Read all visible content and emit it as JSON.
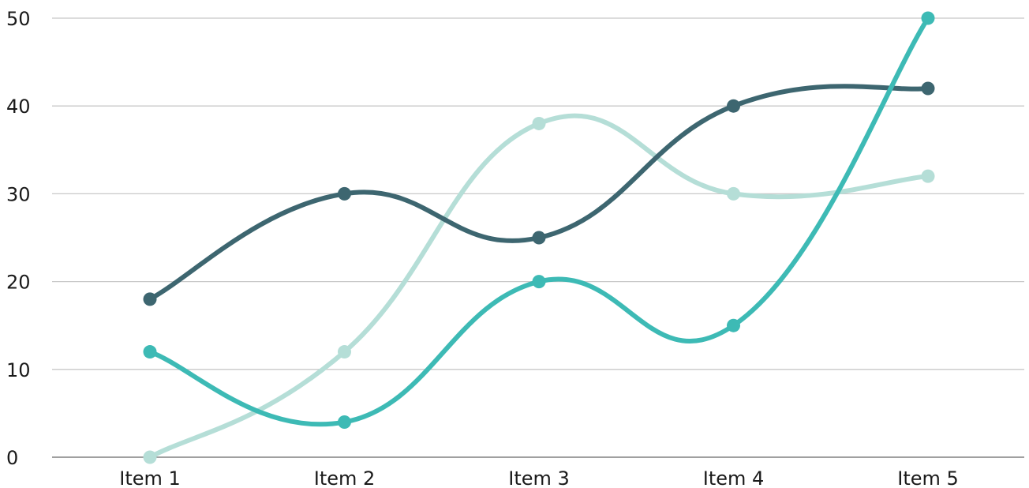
{
  "chart_data": {
    "type": "line",
    "smooth": true,
    "categories": [
      "Item 1",
      "Item 2",
      "Item 3",
      "Item 4",
      "Item 5"
    ],
    "series": [
      {
        "color": "#b5ded7",
        "values": [
          0,
          12,
          38,
          30,
          32
        ]
      },
      {
        "color": "#3d6670",
        "values": [
          18,
          30,
          25,
          40,
          42
        ]
      },
      {
        "color": "#3dbab5",
        "values": [
          12,
          4,
          20,
          15,
          50
        ]
      }
    ],
    "yticks": [
      0,
      10,
      20,
      30,
      40,
      50
    ],
    "ylim": [
      0,
      50
    ],
    "grid": true,
    "legend": "none",
    "title": "",
    "xlabel": "",
    "ylabel": ""
  }
}
